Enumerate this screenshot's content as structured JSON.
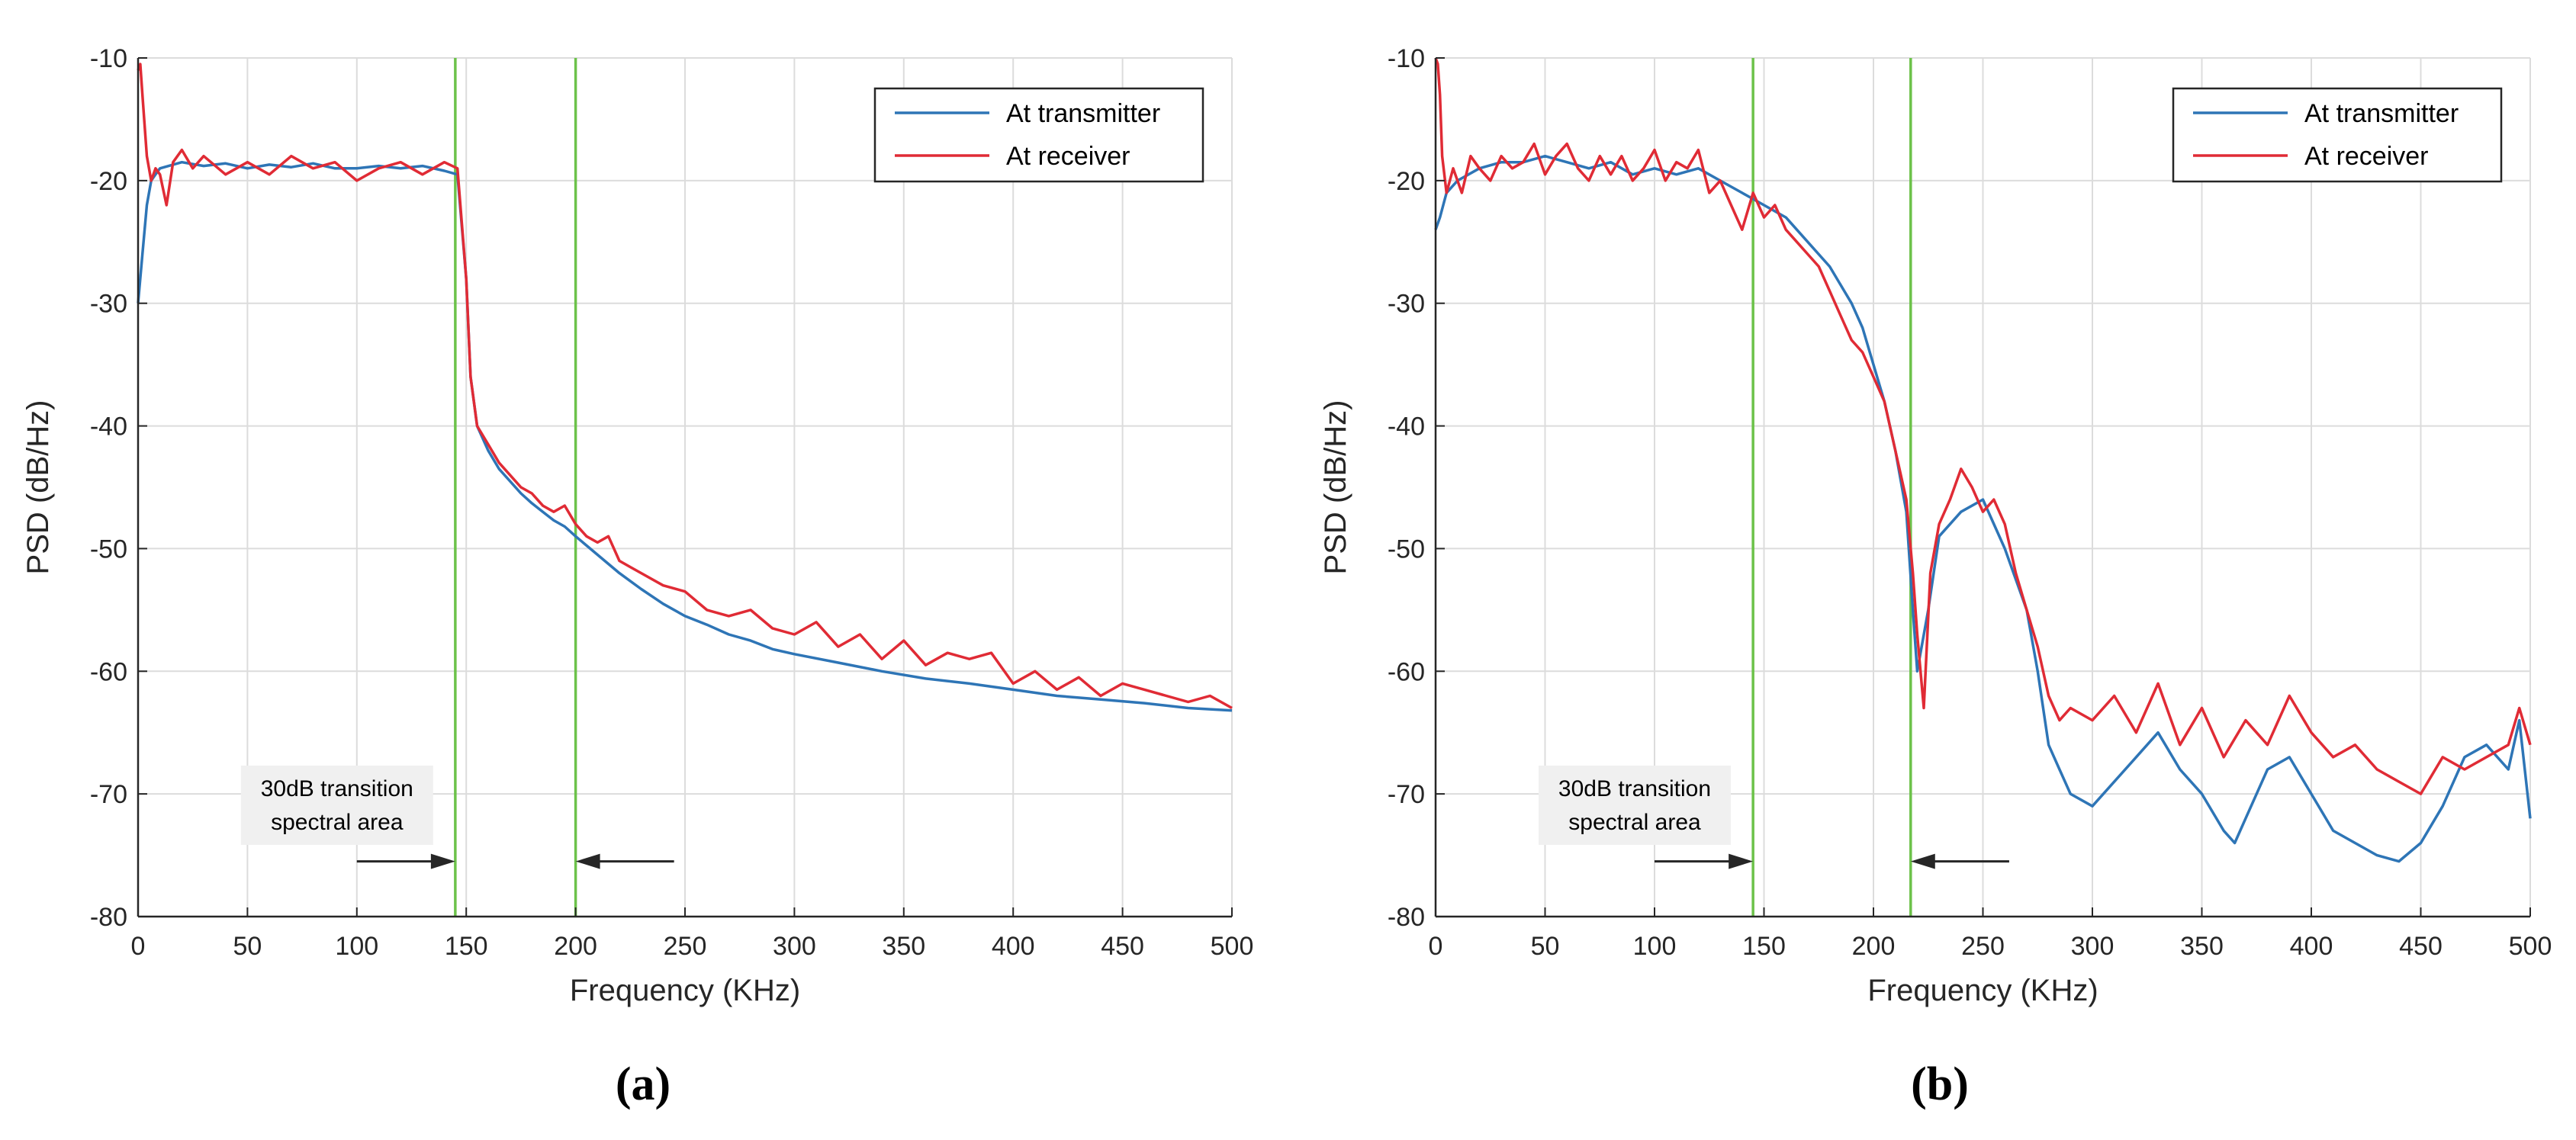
{
  "chart_data": [
    {
      "id": "a",
      "type": "line",
      "caption": "(a)",
      "xlabel": "Frequency (KHz)",
      "ylabel": "PSD (dB/Hz)",
      "xlim": [
        0,
        500
      ],
      "ylim": [
        -80,
        -10
      ],
      "xticks": [
        0,
        50,
        100,
        150,
        200,
        250,
        300,
        350,
        400,
        450,
        500
      ],
      "yticks": [
        -10,
        -20,
        -30,
        -40,
        -50,
        -60,
        -70,
        -80
      ],
      "grid": true,
      "legend_position": "top-right",
      "vlines": [
        145,
        200
      ],
      "annotation": {
        "lines": [
          "30dB transition",
          "spectral area"
        ],
        "arrow_right": [
          100,
          145
        ],
        "arrow_left": [
          245,
          200
        ],
        "arrow_y": -75.5
      },
      "series": [
        {
          "name": "At transmitter",
          "color": "#2e75b6",
          "x": [
            0,
            2,
            4,
            6,
            8,
            10,
            20,
            30,
            40,
            50,
            60,
            70,
            80,
            90,
            100,
            110,
            120,
            130,
            140,
            146,
            150,
            152,
            155,
            160,
            165,
            170,
            175,
            180,
            185,
            190,
            195,
            200,
            210,
            220,
            230,
            240,
            250,
            260,
            270,
            280,
            290,
            300,
            320,
            340,
            360,
            380,
            400,
            420,
            440,
            460,
            480,
            500
          ],
          "y": [
            -30,
            -26,
            -22,
            -20,
            -19.5,
            -19,
            -18.5,
            -18.8,
            -18.6,
            -19,
            -18.7,
            -18.9,
            -18.6,
            -19,
            -19,
            -18.8,
            -19,
            -18.8,
            -19.2,
            -19.5,
            -28,
            -36,
            -40,
            -42,
            -43.5,
            -44.5,
            -45.5,
            -46.3,
            -47,
            -47.7,
            -48.2,
            -49,
            -50.5,
            -52,
            -53.3,
            -54.5,
            -55.5,
            -56.2,
            -57,
            -57.5,
            -58.2,
            -58.6,
            -59.3,
            -60,
            -60.6,
            -61,
            -61.5,
            -62,
            -62.3,
            -62.6,
            -63,
            -63.2
          ]
        },
        {
          "name": "At receiver",
          "color": "#e02b35",
          "x": [
            0,
            1,
            2,
            4,
            6,
            8,
            10,
            13,
            16,
            20,
            25,
            30,
            40,
            50,
            60,
            70,
            80,
            90,
            100,
            110,
            120,
            130,
            140,
            146,
            150,
            152,
            155,
            160,
            165,
            170,
            175,
            180,
            185,
            190,
            195,
            200,
            205,
            210,
            215,
            220,
            225,
            230,
            240,
            250,
            260,
            270,
            280,
            290,
            300,
            310,
            320,
            330,
            340,
            350,
            360,
            370,
            380,
            390,
            400,
            410,
            420,
            430,
            440,
            450,
            460,
            470,
            480,
            490,
            500
          ],
          "y": [
            -11,
            -10.5,
            -13,
            -18,
            -20,
            -19,
            -19.5,
            -22,
            -18.5,
            -17.5,
            -19,
            -18,
            -19.5,
            -18.5,
            -19.5,
            -18,
            -19,
            -18.5,
            -20,
            -19,
            -18.5,
            -19.5,
            -18.5,
            -19,
            -28,
            -36,
            -40,
            -41.5,
            -43,
            -44,
            -45,
            -45.5,
            -46.5,
            -47,
            -46.5,
            -48,
            -49,
            -49.5,
            -49,
            -51,
            -51.5,
            -52,
            -53,
            -53.5,
            -55,
            -55.5,
            -55,
            -56.5,
            -57,
            -56,
            -58,
            -57,
            -59,
            -57.5,
            -59.5,
            -58.5,
            -59,
            -58.5,
            -61,
            -60,
            -61.5,
            -60.5,
            -62,
            -61,
            -61.5,
            -62,
            -62.5,
            -62,
            -63
          ]
        }
      ]
    },
    {
      "id": "b",
      "type": "line",
      "caption": "(b)",
      "xlabel": "Frequency (KHz)",
      "ylabel": "PSD (dB/Hz)",
      "xlim": [
        0,
        500
      ],
      "ylim": [
        -80,
        -10
      ],
      "xticks": [
        0,
        50,
        100,
        150,
        200,
        250,
        300,
        350,
        400,
        450,
        500
      ],
      "yticks": [
        -10,
        -20,
        -30,
        -40,
        -50,
        -60,
        -70,
        -80
      ],
      "grid": true,
      "legend_position": "top-right",
      "vlines": [
        145,
        217
      ],
      "annotation": {
        "lines": [
          "30dB transition",
          "spectral area"
        ],
        "arrow_right": [
          100,
          145
        ],
        "arrow_left": [
          262,
          217
        ],
        "arrow_y": -75.5
      },
      "series": [
        {
          "name": "At transmitter",
          "color": "#2e75b6",
          "x": [
            0,
            2,
            5,
            10,
            20,
            30,
            40,
            50,
            60,
            70,
            80,
            90,
            100,
            110,
            120,
            130,
            140,
            150,
            160,
            170,
            180,
            190,
            195,
            200,
            205,
            210,
            215,
            218,
            220,
            225,
            230,
            240,
            250,
            260,
            270,
            275,
            280,
            285,
            290,
            300,
            310,
            320,
            330,
            340,
            350,
            360,
            365,
            370,
            380,
            390,
            400,
            410,
            420,
            430,
            440,
            450,
            460,
            470,
            480,
            490,
            495,
            500
          ],
          "y": [
            -24,
            -23,
            -21,
            -20,
            -19,
            -18.5,
            -18.5,
            -18,
            -18.5,
            -19,
            -18.5,
            -19.5,
            -19,
            -19.5,
            -19,
            -20,
            -21,
            -22,
            -23,
            -25,
            -27,
            -30,
            -32,
            -35,
            -38,
            -42,
            -47,
            -55,
            -60,
            -55,
            -49,
            -47,
            -46,
            -50,
            -55,
            -60,
            -66,
            -68,
            -70,
            -71,
            -69,
            -67,
            -65,
            -68,
            -70,
            -73,
            -74,
            -72,
            -68,
            -67,
            -70,
            -73,
            -74,
            -75,
            -75.5,
            -74,
            -71,
            -67,
            -66,
            -68,
            -64,
            -72
          ]
        },
        {
          "name": "At receiver",
          "color": "#e02b35",
          "x": [
            0,
            1,
            2,
            3,
            5,
            8,
            12,
            16,
            20,
            25,
            30,
            35,
            40,
            45,
            50,
            55,
            60,
            65,
            70,
            75,
            80,
            85,
            90,
            95,
            100,
            105,
            110,
            115,
            120,
            125,
            130,
            135,
            140,
            145,
            150,
            155,
            160,
            165,
            170,
            175,
            180,
            185,
            190,
            195,
            200,
            205,
            210,
            215,
            218,
            220,
            223,
            226,
            230,
            235,
            240,
            245,
            250,
            255,
            260,
            265,
            270,
            275,
            280,
            285,
            290,
            300,
            310,
            320,
            330,
            340,
            350,
            360,
            370,
            380,
            390,
            400,
            410,
            420,
            430,
            440,
            450,
            460,
            470,
            480,
            490,
            495,
            500
          ],
          "y": [
            -10,
            -10.5,
            -13,
            -18,
            -21,
            -19,
            -21,
            -18,
            -19,
            -20,
            -18,
            -19,
            -18.5,
            -17,
            -19.5,
            -18,
            -17,
            -19,
            -20,
            -18,
            -19.5,
            -18,
            -20,
            -19,
            -17.5,
            -20,
            -18.5,
            -19,
            -17.5,
            -21,
            -20,
            -22,
            -24,
            -21,
            -23,
            -22,
            -24,
            -25,
            -26,
            -27,
            -29,
            -31,
            -33,
            -34,
            -36,
            -38,
            -42,
            -46,
            -52,
            -57,
            -63,
            -52,
            -48,
            -46,
            -43.5,
            -45,
            -47,
            -46,
            -48,
            -52,
            -55,
            -58,
            -62,
            -64,
            -63,
            -64,
            -62,
            -65,
            -61,
            -66,
            -63,
            -67,
            -64,
            -66,
            -62,
            -65,
            -67,
            -66,
            -68,
            -69,
            -70,
            -67,
            -68,
            -67,
            -66,
            -63,
            -66
          ]
        }
      ]
    }
  ]
}
